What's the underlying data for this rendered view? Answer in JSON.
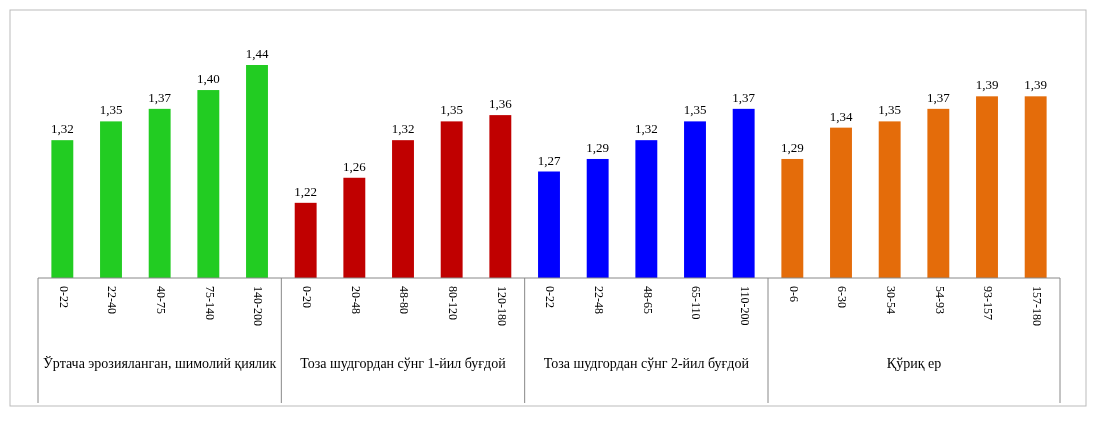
{
  "chart_data": {
    "type": "bar",
    "categories": [
      "0-22",
      "22-40",
      "40-75",
      "75-140",
      "140-200",
      "0-20",
      "20-48",
      "48-80",
      "80-120",
      "120-180",
      "0-22",
      "22-48",
      "48-65",
      "65-110",
      "110-200",
      "0-6",
      "6-30",
      "30-54",
      "54-93",
      "93-157",
      "157-180"
    ],
    "series": [
      {
        "color": "#22cc22",
        "values": [
          1.32,
          1.35,
          1.37,
          1.4,
          1.44,
          null,
          null,
          null,
          null,
          null,
          null,
          null,
          null,
          null,
          null,
          null,
          null,
          null,
          null,
          null,
          null
        ],
        "value_labels": [
          "1,32",
          "1,35",
          "1,37",
          "1,40",
          "1,44",
          null,
          null,
          null,
          null,
          null,
          null,
          null,
          null,
          null,
          null,
          null,
          null,
          null,
          null,
          null,
          null
        ]
      },
      {
        "color": "#c00000",
        "values": [
          null,
          null,
          null,
          null,
          null,
          1.22,
          1.26,
          1.32,
          1.35,
          1.36,
          null,
          null,
          null,
          null,
          null,
          null,
          null,
          null,
          null,
          null,
          null
        ],
        "value_labels": [
          null,
          null,
          null,
          null,
          null,
          "1,22",
          "1,26",
          "1,32",
          "1,35",
          "1,36",
          null,
          null,
          null,
          null,
          null,
          null,
          null,
          null,
          null,
          null,
          null
        ]
      },
      {
        "color": "#0000ff",
        "values": [
          null,
          null,
          null,
          null,
          null,
          null,
          null,
          null,
          null,
          null,
          1.27,
          1.29,
          1.32,
          1.35,
          1.37,
          null,
          null,
          null,
          null,
          null,
          null
        ],
        "value_labels": [
          null,
          null,
          null,
          null,
          null,
          null,
          null,
          null,
          null,
          null,
          "1,27",
          "1,29",
          "1,32",
          "1,35",
          "1,37",
          null,
          null,
          null,
          null,
          null,
          null
        ]
      },
      {
        "color": "#e46c0a",
        "values": [
          null,
          null,
          null,
          null,
          null,
          null,
          null,
          null,
          null,
          null,
          null,
          null,
          null,
          null,
          null,
          1.29,
          1.34,
          1.35,
          1.37,
          1.39,
          1.39
        ],
        "value_labels": [
          null,
          null,
          null,
          null,
          null,
          null,
          null,
          null,
          null,
          null,
          null,
          null,
          null,
          null,
          null,
          "1,29",
          "1,34",
          "1,35",
          "1,37",
          "1,39",
          "1,39"
        ]
      }
    ],
    "ylim": [
      1.1,
      1.44
    ],
    "annotations": [
      "Ўртача эрозияланган, шимолий қиялик",
      "Тоза шудгордан сўнг 1-йил буғдой",
      "Тоза шудгордан сўнг 2-йил буғдой",
      "Қўриқ ер"
    ]
  }
}
